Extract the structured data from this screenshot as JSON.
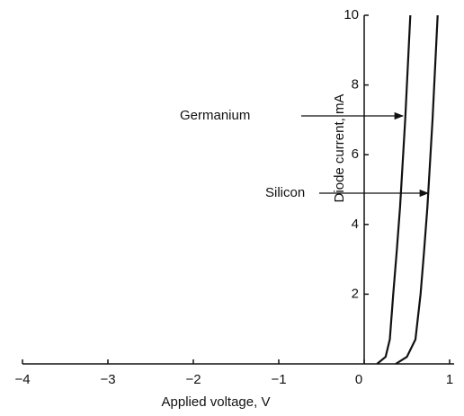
{
  "chart_data": {
    "type": "line",
    "xlabel": "Applied voltage, V",
    "ylabel": "Diode current, mA",
    "xlim": [
      -4,
      1
    ],
    "ylim": [
      0,
      10
    ],
    "xticks": [
      {
        "value": -4,
        "label": "−4"
      },
      {
        "value": -3,
        "label": "−3"
      },
      {
        "value": -2,
        "label": "−2"
      },
      {
        "value": -1,
        "label": "−1"
      },
      0,
      1
    ],
    "yticks": [
      2,
      4,
      6,
      8,
      10
    ],
    "grid": false,
    "series": [
      {
        "name": "Germanium",
        "color": "#111111",
        "x": [
          0.15,
          0.25,
          0.3,
          0.34,
          0.38,
          0.42,
          0.48,
          0.54
        ],
        "values": [
          0,
          0.2,
          0.7,
          2,
          3.2,
          4.5,
          7,
          10
        ]
      },
      {
        "name": "Silicon",
        "color": "#111111",
        "x": [
          0.37,
          0.5,
          0.6,
          0.66,
          0.7,
          0.74,
          0.8,
          0.86
        ],
        "values": [
          0,
          0.2,
          0.7,
          2,
          3.2,
          4.5,
          7,
          10
        ]
      }
    ]
  }
}
